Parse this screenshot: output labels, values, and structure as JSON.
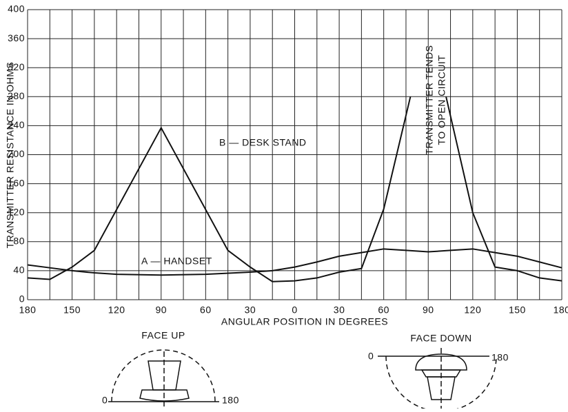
{
  "chart_data": {
    "type": "line",
    "xlabel": "ANGULAR POSITION IN DEGREES",
    "ylabel": "TRANSMITTER RESISTANCE IN OHMS",
    "xlim": [
      -180,
      180
    ],
    "ylim": [
      0,
      400
    ],
    "xticks": [
      {
        "value": -180,
        "label": "180"
      },
      {
        "value": -150,
        "label": "150"
      },
      {
        "value": -120,
        "label": "120"
      },
      {
        "value": -90,
        "label": "90"
      },
      {
        "value": -60,
        "label": "60"
      },
      {
        "value": -30,
        "label": "30"
      },
      0,
      30,
      60,
      90,
      120,
      150,
      180
    ],
    "x_minor_ticks": [
      -165,
      -135,
      -105,
      -75,
      -45,
      -15,
      15,
      45,
      75,
      105,
      135,
      165
    ],
    "yticks": [
      0,
      40,
      80,
      120,
      160,
      200,
      240,
      280,
      320,
      360,
      400
    ],
    "grid": true,
    "series": [
      {
        "name": "A — HANDSET",
        "color": "#111111",
        "x": [
          -180,
          -165,
          -150,
          -135,
          -120,
          -90,
          -60,
          -30,
          -15,
          0,
          15,
          30,
          45,
          60,
          75,
          90,
          105,
          120,
          135,
          150,
          165,
          180
        ],
        "values": [
          48,
          44,
          40,
          37,
          35,
          34,
          35,
          38,
          40,
          45,
          52,
          60,
          65,
          70,
          68,
          66,
          68,
          70,
          65,
          60,
          52,
          44
        ]
      },
      {
        "name": "B — DESK STAND",
        "color": "#111111",
        "x": [
          -180,
          -165,
          -150,
          -135,
          -90,
          -45,
          -30,
          -15,
          0,
          15,
          30,
          45,
          60,
          78,
          90,
          102,
          120,
          135,
          150,
          165,
          180
        ],
        "values": [
          30,
          28,
          45,
          68,
          237,
          68,
          45,
          25,
          26,
          30,
          38,
          43,
          125,
          280,
          null,
          280,
          120,
          45,
          40,
          30,
          26
        ]
      }
    ],
    "annotation": [
      "TRANSMITTER TENDS",
      "TO OPEN CIRCUIT"
    ],
    "diagrams": [
      {
        "title": "FACE UP",
        "left": "0",
        "right": "180"
      },
      {
        "title": "FACE DOWN",
        "left": "0",
        "right": "180"
      }
    ]
  }
}
